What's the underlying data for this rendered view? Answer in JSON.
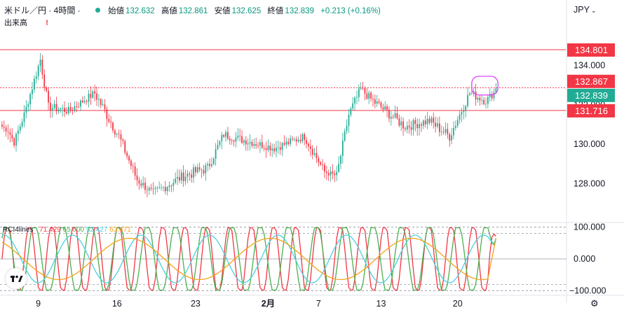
{
  "header": {
    "symbol": "米ドル／円 · 4時間 ·",
    "open_label": "始値",
    "open": "132.632",
    "high_label": "高値",
    "high": "132.861",
    "low_label": "安値",
    "low": "132.625",
    "close_label": "終値",
    "close": "132.839",
    "change": "+0.213 (+0.16%)",
    "volume_label": "出来高",
    "warning": "!",
    "currency": "JPY",
    "currency_chevron": "⌄"
  },
  "indicator": {
    "name": "RCI4lines",
    "v1": "71.429",
    "v2": "65.000",
    "v3": "52.427",
    "v4": "63.471"
  },
  "colors": {
    "up": "#22ab94",
    "down": "#f23645",
    "hline": "#f23645",
    "marker": "#e040fb",
    "rci_red": "#f23645",
    "rci_green": "#4caf50",
    "rci_cyan": "#4dd0e1",
    "rci_orange": "#f7a21b"
  },
  "icons": {
    "logo": "tradingview-logo-icon",
    "settings": "gear-icon"
  },
  "chart_data": [
    {
      "type": "candlestick",
      "title": "米ドル／円 · 4時間",
      "y_axis_ticks": [
        "128.000",
        "130.000",
        "132.000",
        "134.000"
      ],
      "y_tick_values": [
        128,
        130,
        132,
        134
      ],
      "ylim": [
        126.1,
        135.9
      ],
      "x_axis_ticks": [
        "9",
        "16",
        "23",
        "2月",
        "7",
        "13",
        "20"
      ],
      "x_tick_index": [
        18,
        57,
        96,
        132,
        157,
        188,
        226
      ],
      "x_range": [
        -1,
        280
      ],
      "price_lines": [
        {
          "label": "134.801",
          "value": 134.801,
          "style": "solid"
        },
        {
          "label": "132.867",
          "value": 132.867,
          "style": "dotted"
        },
        {
          "label": "131.716",
          "value": 131.716,
          "style": "solid"
        }
      ],
      "last_price": {
        "label": "132.839",
        "value": 132.839
      },
      "highlight": {
        "from_index": 233,
        "to_index": 246,
        "low": 132.5,
        "high": 133.45
      },
      "segments": [
        {
          "from": 0,
          "to": 3,
          "start": 130.9,
          "end": 130.7,
          "noise": 0.3
        },
        {
          "from": 3,
          "to": 6,
          "start": 130.7,
          "end": 130.1,
          "noise": 0.3
        },
        {
          "from": 6,
          "to": 11,
          "start": 130.1,
          "end": 131.5,
          "noise": 0.4
        },
        {
          "from": 11,
          "to": 15,
          "start": 131.5,
          "end": 132.9,
          "noise": 0.4
        },
        {
          "from": 15,
          "to": 19,
          "start": 132.9,
          "end": 134.3,
          "noise": 0.45
        },
        {
          "from": 19,
          "to": 23,
          "start": 134.3,
          "end": 131.9,
          "noise": 0.5
        },
        {
          "from": 23,
          "to": 33,
          "start": 131.9,
          "end": 131.7,
          "noise": 0.45
        },
        {
          "from": 33,
          "to": 46,
          "start": 131.7,
          "end": 132.6,
          "noise": 0.4
        },
        {
          "from": 46,
          "to": 58,
          "start": 132.6,
          "end": 130.4,
          "noise": 0.6
        },
        {
          "from": 58,
          "to": 67,
          "start": 130.4,
          "end": 128.2,
          "noise": 0.55
        },
        {
          "from": 67,
          "to": 75,
          "start": 128.2,
          "end": 127.5,
          "noise": 0.45
        },
        {
          "from": 75,
          "to": 90,
          "start": 127.5,
          "end": 128.4,
          "noise": 0.5
        },
        {
          "from": 90,
          "to": 102,
          "start": 128.4,
          "end": 128.8,
          "noise": 0.55
        },
        {
          "from": 102,
          "to": 110,
          "start": 128.8,
          "end": 130.5,
          "noise": 0.5
        },
        {
          "from": 110,
          "to": 120,
          "start": 130.5,
          "end": 130.2,
          "noise": 0.45
        },
        {
          "from": 120,
          "to": 135,
          "start": 130.2,
          "end": 129.8,
          "noise": 0.4
        },
        {
          "from": 135,
          "to": 150,
          "start": 129.8,
          "end": 130.4,
          "noise": 0.4
        },
        {
          "from": 150,
          "to": 160,
          "start": 130.4,
          "end": 128.6,
          "noise": 0.45
        },
        {
          "from": 160,
          "to": 166,
          "start": 128.6,
          "end": 128.4,
          "noise": 0.3
        },
        {
          "from": 166,
          "to": 172,
          "start": 128.4,
          "end": 131.5,
          "noise": 0.5
        },
        {
          "from": 172,
          "to": 178,
          "start": 131.5,
          "end": 132.8,
          "noise": 0.5
        },
        {
          "from": 178,
          "to": 184,
          "start": 132.8,
          "end": 132.2,
          "noise": 0.45
        },
        {
          "from": 184,
          "to": 200,
          "start": 132.2,
          "end": 130.9,
          "noise": 0.55
        },
        {
          "from": 200,
          "to": 212,
          "start": 130.9,
          "end": 131.2,
          "noise": 0.5
        },
        {
          "from": 212,
          "to": 222,
          "start": 131.2,
          "end": 130.4,
          "noise": 0.55
        },
        {
          "from": 222,
          "to": 232,
          "start": 130.4,
          "end": 132.6,
          "noise": 0.5
        },
        {
          "from": 232,
          "to": 240,
          "start": 132.6,
          "end": 132.2,
          "noise": 0.45
        },
        {
          "from": 240,
          "to": 246,
          "start": 132.2,
          "end": 132.839,
          "noise": 0.4
        }
      ]
    },
    {
      "type": "line",
      "name": "RCI4lines",
      "y_axis_ticks": [
        "100.000",
        "0.000",
        "−100.000"
      ],
      "y_tick_values": [
        100,
        0,
        -100
      ],
      "ylim": [
        -110,
        110
      ],
      "reference_levels": [
        100,
        80,
        -80,
        -100
      ],
      "series": [
        {
          "name": "71.429",
          "color": "#f23645",
          "period_bars": 11,
          "phase": 0.0,
          "amplitude": 95,
          "last": 71.429
        },
        {
          "name": "65.000",
          "color": "#4caf50",
          "period_bars": 14,
          "phase": 0.6,
          "amplitude": 92,
          "last": 65.0
        },
        {
          "name": "52.427",
          "color": "#4dd0e1",
          "period_bars": 34,
          "phase": 1.4,
          "amplitude": 75,
          "last": 52.427
        },
        {
          "name": "63.471",
          "color": "#f7a21b",
          "period_bars": 70,
          "phase": 2.2,
          "amplitude": 65,
          "last": 63.471
        }
      ]
    }
  ]
}
